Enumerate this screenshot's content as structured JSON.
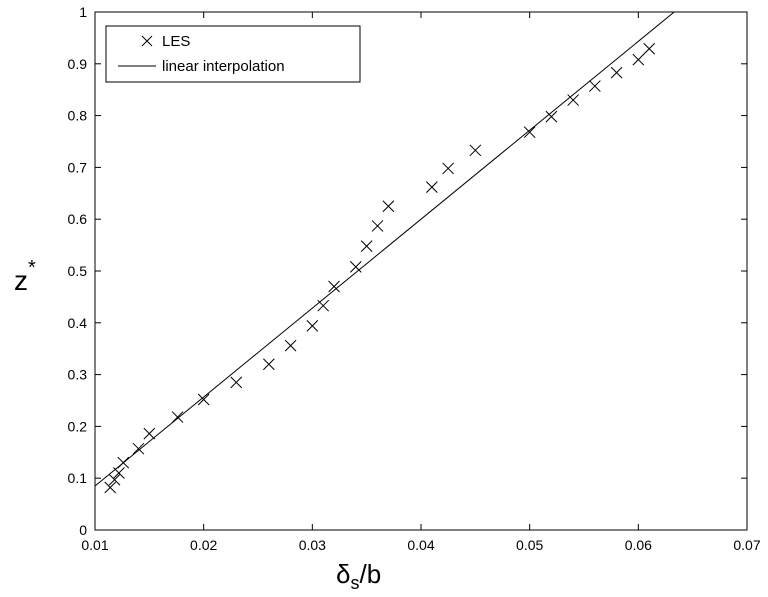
{
  "chart_data": {
    "type": "scatter",
    "xlabel_main": "δ",
    "xlabel_sub": "s",
    "xlabel_tail": "/b",
    "ylabel_main": "z",
    "ylabel_sup": "*",
    "xlim": [
      0.01,
      0.07
    ],
    "ylim": [
      0,
      1
    ],
    "x_ticks": [
      0.01,
      0.02,
      0.03,
      0.04,
      0.05,
      0.06,
      0.07
    ],
    "x_tick_labels": [
      "0.01",
      "0.02",
      "0.03",
      "0.04",
      "0.05",
      "0.06",
      "0.07"
    ],
    "y_ticks": [
      0,
      0.1,
      0.2,
      0.3,
      0.4,
      0.5,
      0.6,
      0.7,
      0.8,
      0.9,
      1
    ],
    "y_tick_labels": [
      "0",
      "0.1",
      "0.2",
      "0.3",
      "0.4",
      "0.5",
      "0.6",
      "0.7",
      "0.8",
      "0.9",
      "1"
    ],
    "grid": false,
    "legend_position": "top-left",
    "series": [
      {
        "name": "LES",
        "marker": "x",
        "color": "#000000",
        "x": [
          0.0114,
          0.0118,
          0.0122,
          0.0126,
          0.014,
          0.015,
          0.0176,
          0.02,
          0.023,
          0.026,
          0.028,
          0.03,
          0.031,
          0.032,
          0.034,
          0.035,
          0.036,
          0.037,
          0.041,
          0.0425,
          0.045,
          0.05,
          0.052,
          0.054,
          0.056,
          0.058,
          0.06,
          0.061
        ],
        "y": [
          0.082,
          0.097,
          0.11,
          0.13,
          0.157,
          0.186,
          0.218,
          0.252,
          0.285,
          0.32,
          0.356,
          0.394,
          0.433,
          0.47,
          0.508,
          0.548,
          0.587,
          0.625,
          0.662,
          0.698,
          0.733,
          0.768,
          0.798,
          0.83,
          0.857,
          0.883,
          0.908,
          0.929
        ]
      },
      {
        "name": "linear interpolation",
        "marker": "line",
        "color": "#000000",
        "x": [
          0.01,
          0.0633
        ],
        "y": [
          0.085,
          1.0
        ]
      }
    ]
  }
}
